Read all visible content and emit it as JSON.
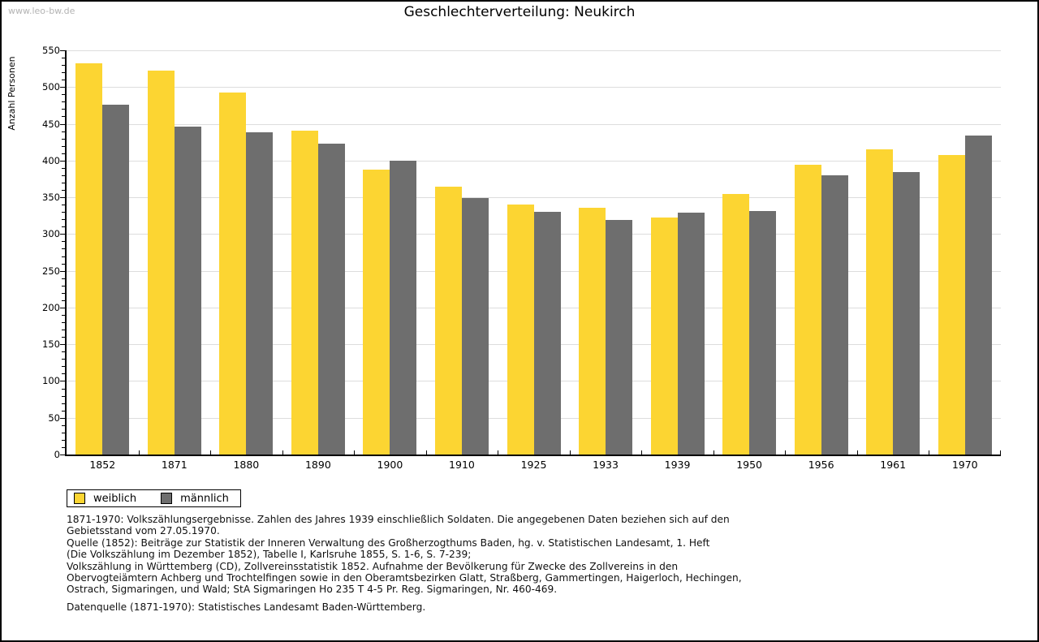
{
  "watermark": "www.leo-bw.de",
  "chart_data": {
    "type": "bar",
    "title": "Geschlechterverteilung: Neukirch",
    "xlabel": "",
    "ylabel": "Anzahl Personen",
    "ylim": [
      0,
      550
    ],
    "ytick_major_step": 50,
    "ytick_minor_step": 10,
    "grid": true,
    "legend_position": "bottom-left",
    "categories": [
      "1852",
      "1871",
      "1880",
      "1890",
      "1900",
      "1910",
      "1925",
      "1933",
      "1939",
      "1950",
      "1956",
      "1961",
      "1970"
    ],
    "series": [
      {
        "name": "weiblich",
        "color": "#fcd532",
        "values": [
          532,
          522,
          493,
          441,
          388,
          365,
          340,
          336,
          322,
          355,
          394,
          415,
          408
        ]
      },
      {
        "name": "männlich",
        "color": "#6e6e6e",
        "values": [
          476,
          446,
          438,
          423,
          400,
          349,
          330,
          319,
          329,
          331,
          380,
          384,
          434
        ]
      }
    ]
  },
  "footnotes": [
    "1871-1970: Volkszählungsergebnisse. Zahlen des Jahres 1939 einschließlich Soldaten. Die angegebenen Daten beziehen sich auf den",
    "Gebietsstand vom 27.05.1970.",
    "Quelle (1852): Beiträge zur Statistik der Inneren Verwaltung des Großherzogthums Baden, hg. v. Statistischen Landesamt, 1. Heft",
    "(Die Volkszählung im Dezember 1852), Tabelle I, Karlsruhe 1855, S. 1-6, S. 7-239;",
    "Volkszählung in Württemberg (CD), Zollvereinsstatistik 1852. Aufnahme der Bevölkerung für Zwecke des Zollvereins in den",
    "Obervogteiämtern Achberg und Trochtelfingen sowie in den Oberamtsbezirken Glatt, Straßberg, Gammertingen, Haigerloch, Hechingen,",
    "Ostrach, Sigmaringen, und Wald; StA Sigmaringen Ho 235 T 4-5 Pr. Reg. Sigmaringen, Nr. 460-469."
  ],
  "datasource": "Datenquelle (1871-1970): Statistisches Landesamt Baden-Württemberg."
}
